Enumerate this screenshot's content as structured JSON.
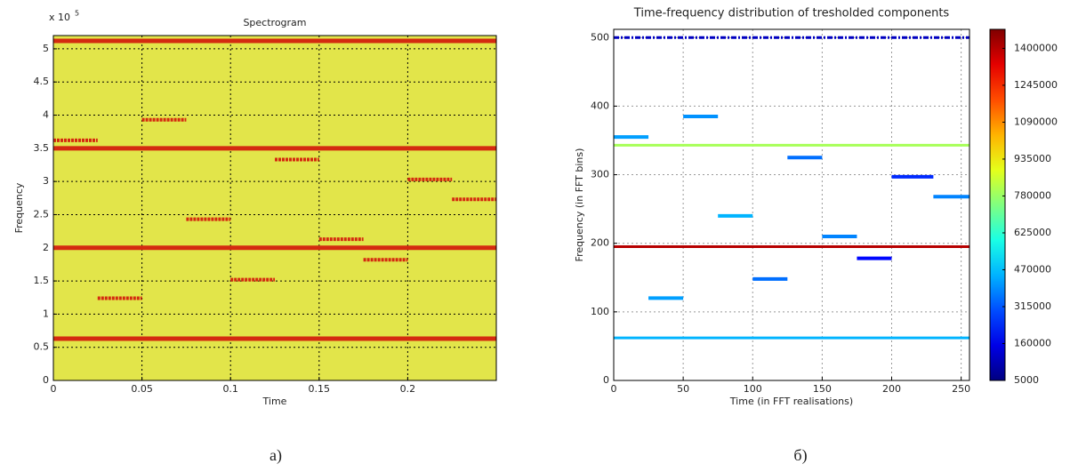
{
  "chart_data": [
    {
      "type": "spectrogram",
      "title": "Spectrogram",
      "x_label": "Time",
      "y_label": "Frequency",
      "y_scale_label": "x 10",
      "y_scale_exponent": "5",
      "caption": "а)",
      "xlim": [
        0,
        0.25
      ],
      "ylim": [
        0,
        5.2
      ],
      "xticks": [
        0,
        0.05,
        0.1,
        0.15,
        0.2
      ],
      "yticks": [
        0,
        0.5,
        1,
        1.5,
        2,
        2.5,
        3,
        3.5,
        4,
        4.5,
        5
      ],
      "grid": true,
      "background_color": "#e2e54a",
      "color": "#d42a10",
      "segments": [
        {
          "x": [
            0,
            0.25
          ],
          "y": 5.12
        },
        {
          "x": [
            0,
            0.25
          ],
          "y": 3.5
        },
        {
          "x": [
            0,
            0.25
          ],
          "y": 2.0
        },
        {
          "x": [
            0,
            0.25
          ],
          "y": 0.63
        },
        {
          "x": [
            0,
            0.025
          ],
          "y": 3.62
        },
        {
          "x": [
            0.025,
            0.05
          ],
          "y": 1.24
        },
        {
          "x": [
            0.05,
            0.075
          ],
          "y": 3.93
        },
        {
          "x": [
            0.075,
            0.1
          ],
          "y": 2.43
        },
        {
          "x": [
            0.1,
            0.125
          ],
          "y": 1.52
        },
        {
          "x": [
            0.125,
            0.15
          ],
          "y": 3.33
        },
        {
          "x": [
            0.15,
            0.175
          ],
          "y": 2.13
        },
        {
          "x": [
            0.175,
            0.2
          ],
          "y": 1.82
        },
        {
          "x": [
            0.2,
            0.225
          ],
          "y": 3.03
        },
        {
          "x": [
            0.225,
            0.25
          ],
          "y": 2.73
        }
      ]
    },
    {
      "type": "scatter",
      "title": "Time-frequency distribution of tresholded components",
      "x_label": "Time (in FFT realisations)",
      "y_label": "Frequency (in FFT bins)",
      "caption": "б)",
      "xlim": [
        0,
        256
      ],
      "ylim": [
        0,
        512
      ],
      "xticks": [
        0,
        50,
        100,
        150,
        200,
        250
      ],
      "yticks": [
        0,
        100,
        200,
        300,
        400,
        500
      ],
      "grid": true,
      "colormap": "jet",
      "clim": [
        5000,
        1480000
      ],
      "colorbar_ticks": [
        5000,
        160000,
        315000,
        470000,
        625000,
        780000,
        935000,
        1090000,
        1245000,
        1400000
      ],
      "segments": [
        {
          "x": [
            0,
            256
          ],
          "y": 500,
          "c": 100000
        },
        {
          "x": [
            0,
            256
          ],
          "y": 343,
          "c": 800000
        },
        {
          "x": [
            0,
            256
          ],
          "y": 195,
          "c": 1400000
        },
        {
          "x": [
            0,
            256
          ],
          "y": 62,
          "c": 450000
        },
        {
          "x": [
            0,
            25
          ],
          "y": 355,
          "c": 420000
        },
        {
          "x": [
            25,
            50
          ],
          "y": 120,
          "c": 420000
        },
        {
          "x": [
            50,
            75
          ],
          "y": 385,
          "c": 400000
        },
        {
          "x": [
            75,
            100
          ],
          "y": 240,
          "c": 450000
        },
        {
          "x": [
            100,
            125
          ],
          "y": 148,
          "c": 350000
        },
        {
          "x": [
            125,
            150
          ],
          "y": 325,
          "c": 350000
        },
        {
          "x": [
            150,
            175
          ],
          "y": 210,
          "c": 380000
        },
        {
          "x": [
            175,
            200
          ],
          "y": 178,
          "c": 200000
        },
        {
          "x": [
            200,
            230
          ],
          "y": 297,
          "c": 250000
        },
        {
          "x": [
            230,
            256
          ],
          "y": 268,
          "c": 380000
        }
      ]
    }
  ]
}
